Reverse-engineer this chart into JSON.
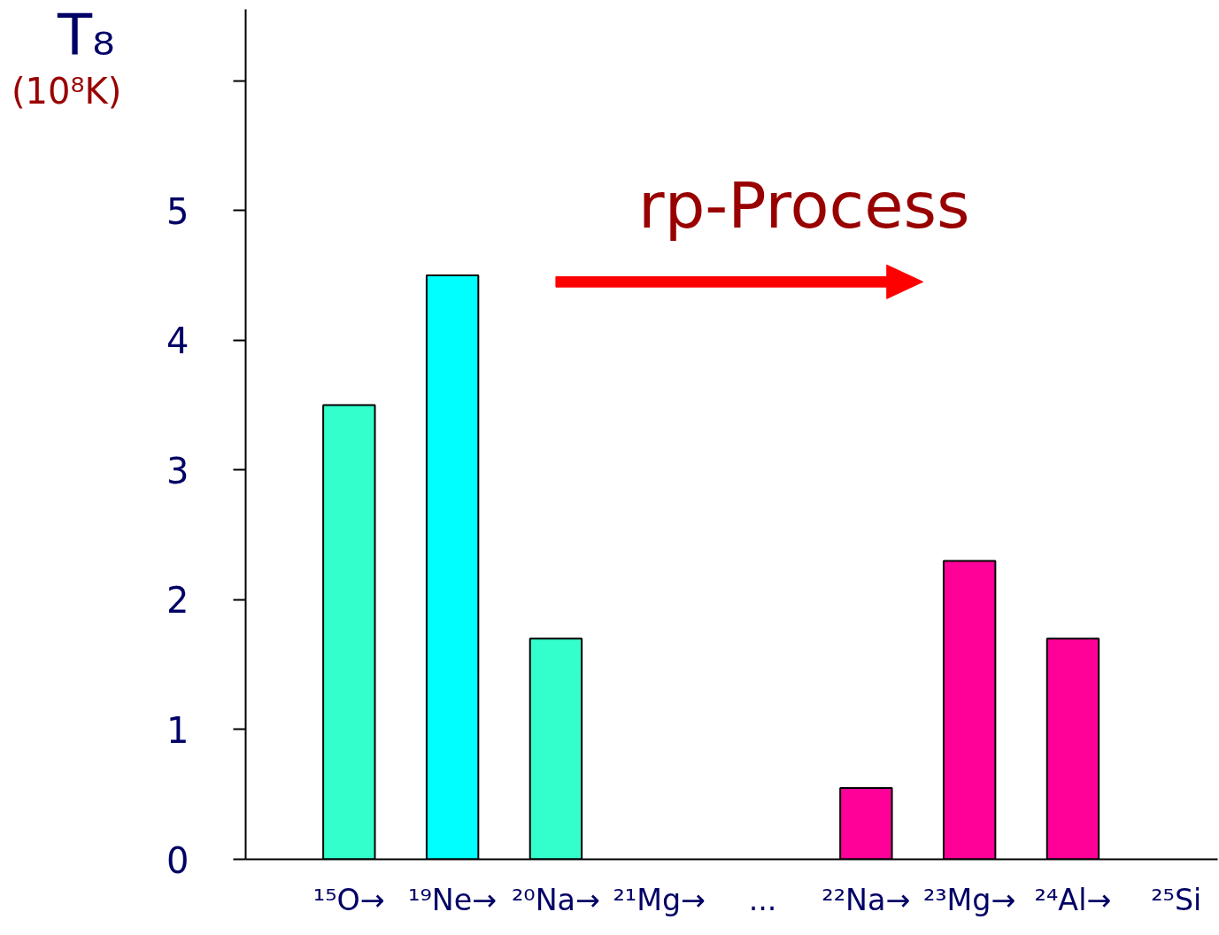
{
  "chart_data": {
    "type": "bar",
    "ylabel": "T₈ (10⁸K)",
    "categories": [
      "¹⁵O→",
      "¹⁹Ne→",
      "²⁰Na→",
      "²¹Mg→",
      "...",
      "²²Na→",
      "²³Mg→",
      "²⁴Al→",
      "²⁵Si"
    ],
    "values": [
      3.5,
      4.5,
      1.7,
      null,
      null,
      0.55,
      2.3,
      1.7,
      null
    ],
    "colors": [
      "#33ffcc",
      "#00ffff",
      "#33ffcc",
      null,
      null,
      "#ff0099",
      "#ff0099",
      "#ff0099",
      null
    ],
    "ylim": [
      0,
      6.55
    ],
    "yticks": [
      0,
      1,
      2,
      3,
      4,
      5,
      {
        "value": 6,
        "label": null
      }
    ],
    "annotations": [
      "rp-Process"
    ],
    "grid": false
  }
}
